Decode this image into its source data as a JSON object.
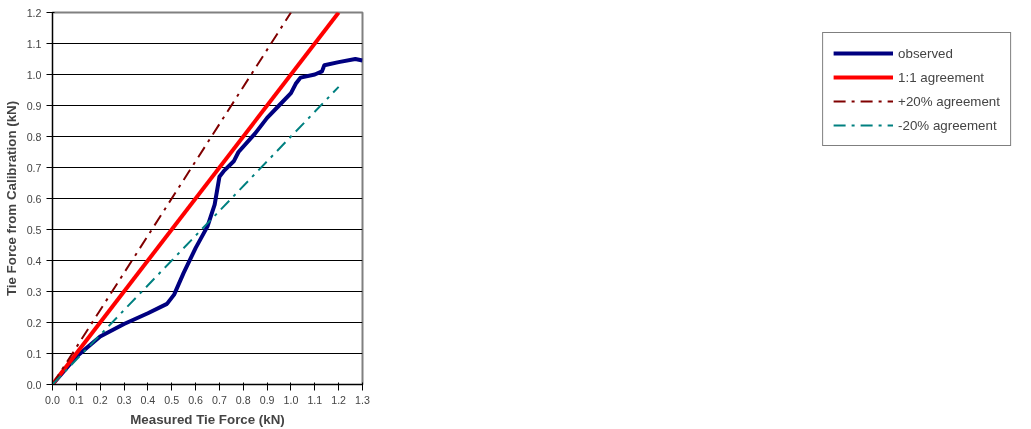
{
  "chart_data": {
    "type": "line",
    "xlabel": "Measured Tie Force (kN)",
    "ylabel": "Tie Force from Calibration (kN)",
    "xlim": [
      0,
      1.3
    ],
    "ylim": [
      0,
      1.2
    ],
    "xticks": [
      {
        "value": 0,
        "label": "0.0"
      },
      0.1,
      0.2,
      0.3,
      0.4,
      0.5,
      0.6,
      0.7,
      0.8,
      0.9,
      {
        "value": 1,
        "label": "1.0"
      },
      1.1,
      1.2,
      1.3
    ],
    "yticks": [
      {
        "value": 0,
        "label": "0.0"
      },
      0.1,
      0.2,
      0.3,
      0.4,
      0.5,
      0.6,
      0.7,
      0.8,
      0.9,
      {
        "value": 1,
        "label": "1.0"
      },
      1.1,
      1.2
    ],
    "grid": "y",
    "legend": "right",
    "series": [
      {
        "name": "observed",
        "color": "#000080",
        "line_style": "solid",
        "x": [
          0,
          0.1,
          0.2,
          0.3,
          0.4,
          0.48,
          0.51,
          0.55,
          0.6,
          0.65,
          0.68,
          0.7,
          0.72,
          0.76,
          0.78,
          0.85,
          0.9,
          0.95,
          1.0,
          1.02,
          1.04,
          1.1,
          1.13,
          1.14,
          1.2,
          1.27,
          1.3
        ],
        "values": [
          0,
          0.09,
          0.155,
          0.195,
          0.23,
          0.26,
          0.29,
          0.36,
          0.44,
          0.51,
          0.58,
          0.67,
          0.69,
          0.72,
          0.75,
          0.81,
          0.86,
          0.9,
          0.94,
          0.97,
          0.99,
          1.0,
          1.01,
          1.03,
          1.04,
          1.05,
          1.045
        ]
      },
      {
        "name": "1:1 agreement",
        "color": "#ff0000",
        "line_style": "solid",
        "x": [
          0,
          1.2
        ],
        "values": [
          0,
          1.2
        ]
      },
      {
        "name": "+20% agreement",
        "color": "#800000",
        "line_style": "dashdot",
        "x": [
          0,
          1.0
        ],
        "values": [
          0,
          1.2
        ]
      },
      {
        "name": "-20% agreement",
        "color": "#008080",
        "line_style": "dashdot",
        "x": [
          0,
          1.2
        ],
        "values": [
          0,
          0.96
        ]
      }
    ]
  }
}
